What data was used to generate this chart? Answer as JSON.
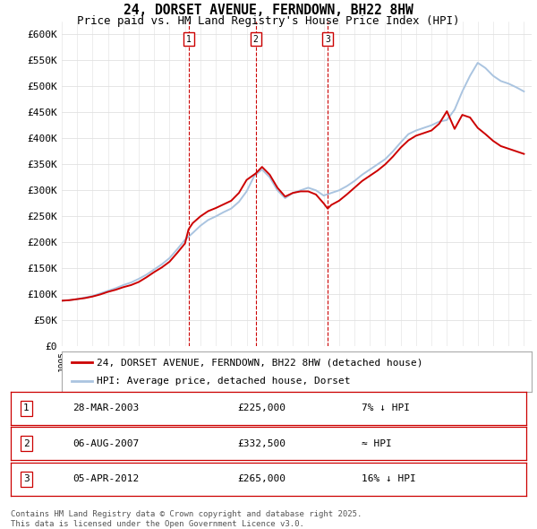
{
  "title": "24, DORSET AVENUE, FERNDOWN, BH22 8HW",
  "subtitle": "Price paid vs. HM Land Registry's House Price Index (HPI)",
  "ylim": [
    0,
    625000
  ],
  "yticks": [
    0,
    50000,
    100000,
    150000,
    200000,
    250000,
    300000,
    350000,
    400000,
    450000,
    500000,
    550000,
    600000
  ],
  "ytick_labels": [
    "£0",
    "£50K",
    "£100K",
    "£150K",
    "£200K",
    "£250K",
    "£300K",
    "£350K",
    "£400K",
    "£450K",
    "£500K",
    "£550K",
    "£600K"
  ],
  "hpi_color": "#aac4e0",
  "price_color": "#cc0000",
  "transaction_color": "#cc0000",
  "background_color": "#ffffff",
  "grid_color": "#e0e0e0",
  "transactions": [
    {
      "date": 2003.23,
      "price": 225000,
      "label": "1"
    },
    {
      "date": 2007.59,
      "price": 332500,
      "label": "2"
    },
    {
      "date": 2012.26,
      "price": 265000,
      "label": "3"
    }
  ],
  "hpi_x": [
    1995,
    1995.5,
    1996,
    1996.5,
    1997,
    1997.5,
    1998,
    1998.5,
    1999,
    1999.5,
    2000,
    2000.5,
    2001,
    2001.5,
    2002,
    2002.5,
    2003,
    2003.5,
    2004,
    2004.5,
    2005,
    2005.5,
    2006,
    2006.5,
    2007,
    2007.5,
    2008,
    2008.5,
    2009,
    2009.5,
    2010,
    2010.5,
    2011,
    2011.5,
    2012,
    2012.5,
    2013,
    2013.5,
    2014,
    2014.5,
    2015,
    2015.5,
    2016,
    2016.5,
    2017,
    2017.5,
    2018,
    2018.5,
    2019,
    2019.5,
    2020,
    2020.5,
    2021,
    2021.5,
    2022,
    2022.5,
    2023,
    2023.5,
    2024,
    2024.5,
    2025
  ],
  "hpi_y": [
    88000,
    89000,
    91000,
    94000,
    97000,
    102000,
    107000,
    112000,
    118000,
    123000,
    130000,
    138000,
    148000,
    158000,
    170000,
    187000,
    205000,
    218000,
    232000,
    243000,
    250000,
    258000,
    265000,
    278000,
    298000,
    328000,
    340000,
    325000,
    300000,
    285000,
    295000,
    300000,
    305000,
    300000,
    290000,
    295000,
    300000,
    308000,
    318000,
    330000,
    340000,
    350000,
    360000,
    375000,
    392000,
    408000,
    415000,
    420000,
    425000,
    432000,
    435000,
    455000,
    490000,
    520000,
    545000,
    535000,
    520000,
    510000,
    505000,
    498000,
    490000
  ],
  "price_x": [
    1995,
    1995.5,
    1996,
    1996.5,
    1997,
    1997.5,
    1998,
    1998.5,
    1999,
    1999.5,
    2000,
    2000.5,
    2001,
    2001.5,
    2002,
    2002.5,
    2003,
    2003.23,
    2003.5,
    2004,
    2004.5,
    2005,
    2005.5,
    2006,
    2006.5,
    2007,
    2007.59,
    2008,
    2008.5,
    2009,
    2009.5,
    2010,
    2010.5,
    2011,
    2011.5,
    2012,
    2012.26,
    2012.5,
    2013,
    2013.5,
    2014,
    2014.5,
    2015,
    2015.5,
    2016,
    2016.5,
    2017,
    2017.5,
    2018,
    2018.5,
    2019,
    2019.5,
    2020,
    2020.5,
    2021,
    2021.5,
    2022,
    2022.5,
    2023,
    2023.5,
    2024,
    2024.5,
    2025
  ],
  "price_y": [
    88000,
    89000,
    91000,
    93000,
    96000,
    100000,
    105000,
    109000,
    114000,
    118000,
    124000,
    133000,
    143000,
    152000,
    163000,
    180000,
    198000,
    225000,
    237000,
    250000,
    260000,
    266000,
    273000,
    280000,
    295000,
    320000,
    332500,
    345000,
    330000,
    305000,
    288000,
    295000,
    298000,
    298000,
    292000,
    275000,
    265000,
    272000,
    280000,
    292000,
    305000,
    318000,
    328000,
    338000,
    350000,
    365000,
    382000,
    396000,
    405000,
    410000,
    415000,
    428000,
    452000,
    418000,
    445000,
    440000,
    420000,
    408000,
    395000,
    385000,
    380000,
    375000,
    370000
  ],
  "legend_entries": [
    {
      "label": "24, DORSET AVENUE, FERNDOWN, BH22 8HW (detached house)",
      "color": "#cc0000"
    },
    {
      "label": "HPI: Average price, detached house, Dorset",
      "color": "#aac4e0"
    }
  ],
  "table_rows": [
    {
      "num": "1",
      "date": "28-MAR-2003",
      "price": "£225,000",
      "note": "7% ↓ HPI"
    },
    {
      "num": "2",
      "date": "06-AUG-2007",
      "price": "£332,500",
      "note": "≈ HPI"
    },
    {
      "num": "3",
      "date": "05-APR-2012",
      "price": "£265,000",
      "note": "16% ↓ HPI"
    }
  ],
  "footer": "Contains HM Land Registry data © Crown copyright and database right 2025.\nThis data is licensed under the Open Government Licence v3.0.",
  "title_fontsize": 10.5,
  "subtitle_fontsize": 9,
  "tick_fontsize": 8,
  "legend_fontsize": 8,
  "table_fontsize": 8,
  "footer_fontsize": 6.5
}
